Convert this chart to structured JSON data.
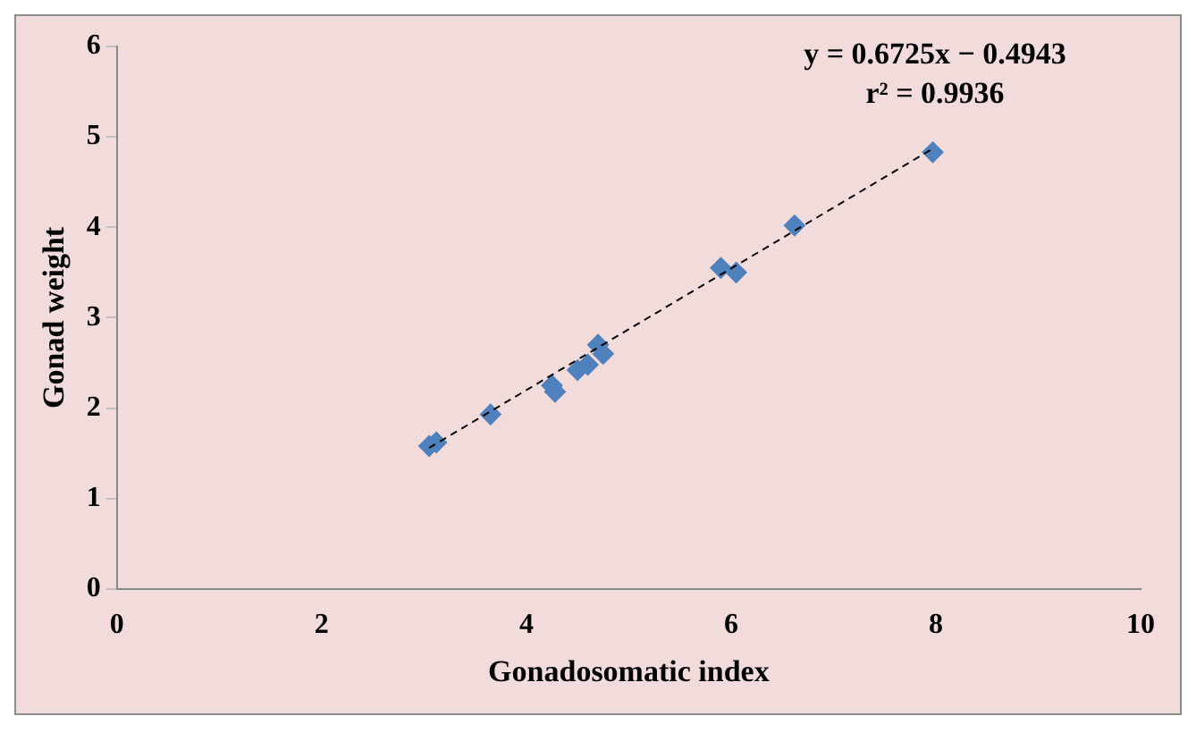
{
  "chart_data": {
    "type": "scatter",
    "xlabel": "Gonadosomatic index",
    "ylabel": "Gonad weight",
    "x": [
      3.05,
      3.12,
      3.65,
      4.25,
      4.28,
      4.5,
      4.6,
      4.7,
      4.75,
      5.9,
      6.05,
      6.62,
      7.97
    ],
    "series": [
      {
        "color": "#4f81bd",
        "values": [
          1.58,
          1.62,
          1.93,
          2.25,
          2.18,
          2.42,
          2.48,
          2.7,
          2.6,
          3.55,
          3.5,
          4.02,
          4.83
        ],
        "marker": "diamond"
      },
      {
        "type": "line",
        "color": "#000000",
        "x": [
          3.05,
          7.97
        ],
        "values": [
          1.56,
          4.87
        ],
        "line_style": "dashed",
        "marker": "none"
      }
    ],
    "xlim": [
      0,
      10
    ],
    "xticks": [
      0,
      2,
      4,
      6,
      8,
      10
    ],
    "ylim": [
      0,
      6
    ],
    "yticks": [
      0,
      1,
      2,
      3,
      4,
      5,
      6
    ],
    "annotations": [
      "y = 0.6725x − 0.4943",
      "r² = 0.9936"
    ],
    "grid": false,
    "legend": false
  }
}
